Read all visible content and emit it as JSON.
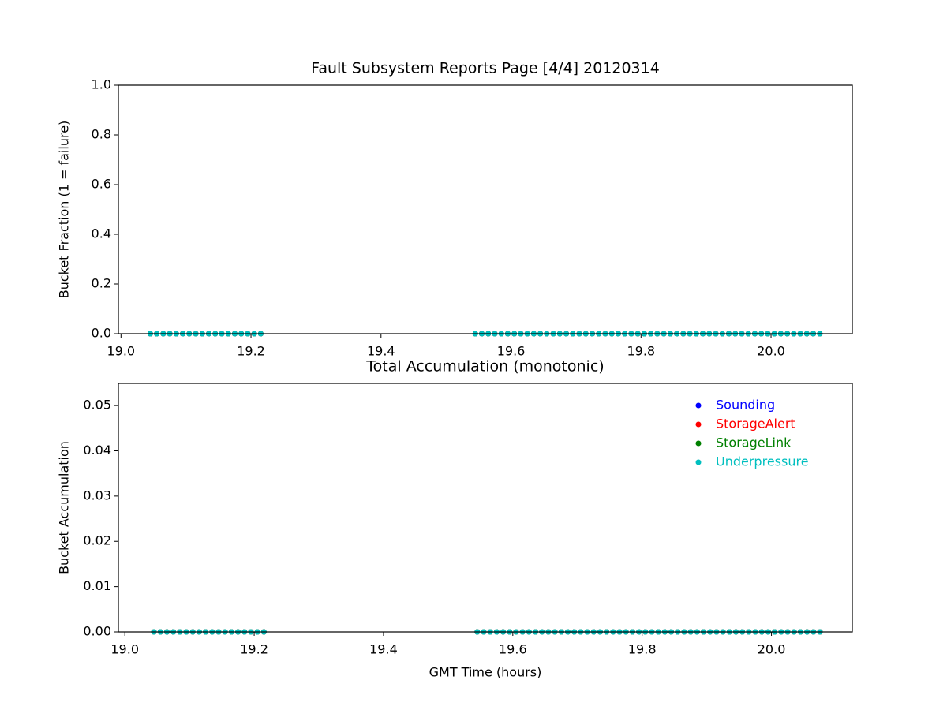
{
  "chart_data": [
    {
      "type": "scatter",
      "title": "Fault Subsystem Reports Page [4/4] 20120314",
      "y_label": "Bucket Fraction (1 = failure)",
      "x": [
        19.045,
        19.055,
        19.065,
        19.075,
        19.085,
        19.095,
        19.105,
        19.115,
        19.125,
        19.135,
        19.145,
        19.155,
        19.165,
        19.175,
        19.185,
        19.195,
        19.205,
        19.215,
        19.545,
        19.555,
        19.565,
        19.575,
        19.585,
        19.595,
        19.605,
        19.615,
        19.625,
        19.635,
        19.645,
        19.655,
        19.665,
        19.675,
        19.685,
        19.695,
        19.705,
        19.715,
        19.725,
        19.735,
        19.745,
        19.755,
        19.765,
        19.775,
        19.785,
        19.795,
        19.805,
        19.815,
        19.825,
        19.835,
        19.845,
        19.855,
        19.865,
        19.875,
        19.885,
        19.895,
        19.905,
        19.915,
        19.925,
        19.935,
        19.945,
        19.955,
        19.965,
        19.975,
        19.985,
        19.995,
        20.005,
        20.015,
        20.025,
        20.035,
        20.045,
        20.055,
        20.065,
        20.075
      ],
      "series": [
        {
          "color": "#0000ff",
          "values": [
            0,
            0,
            0,
            0,
            0,
            0,
            0,
            0,
            0,
            0,
            0,
            0,
            0,
            0,
            0,
            0,
            0,
            0,
            0,
            0,
            0,
            0,
            0,
            0,
            0,
            0,
            0,
            0,
            0,
            0,
            0,
            0,
            0,
            0,
            0,
            0,
            0,
            0,
            0,
            0,
            0,
            0,
            0,
            0,
            0,
            0,
            0,
            0,
            0,
            0,
            0,
            0,
            0,
            0,
            0,
            0,
            0,
            0,
            0,
            0,
            0,
            0,
            0,
            0,
            0,
            0,
            0,
            0,
            0,
            0,
            0,
            0
          ]
        },
        {
          "color": "#ff0000",
          "values": [
            0,
            0,
            0,
            0,
            0,
            0,
            0,
            0,
            0,
            0,
            0,
            0,
            0,
            0,
            0,
            0,
            0,
            0,
            0,
            0,
            0,
            0,
            0,
            0,
            0,
            0,
            0,
            0,
            0,
            0,
            0,
            0,
            0,
            0,
            0,
            0,
            0,
            0,
            0,
            0,
            0,
            0,
            0,
            0,
            0,
            0,
            0,
            0,
            0,
            0,
            0,
            0,
            0,
            0,
            0,
            0,
            0,
            0,
            0,
            0,
            0,
            0,
            0,
            0,
            0,
            0,
            0,
            0,
            0,
            0,
            0,
            0
          ]
        },
        {
          "color": "#008000",
          "values": [
            0,
            0,
            0,
            0,
            0,
            0,
            0,
            0,
            0,
            0,
            0,
            0,
            0,
            0,
            0,
            0,
            0,
            0,
            0,
            0,
            0,
            0,
            0,
            0,
            0,
            0,
            0,
            0,
            0,
            0,
            0,
            0,
            0,
            0,
            0,
            0,
            0,
            0,
            0,
            0,
            0,
            0,
            0,
            0,
            0,
            0,
            0,
            0,
            0,
            0,
            0,
            0,
            0,
            0,
            0,
            0,
            0,
            0,
            0,
            0,
            0,
            0,
            0,
            0,
            0,
            0,
            0,
            0,
            0,
            0,
            0,
            0
          ]
        },
        {
          "color": "#00bfbf",
          "values": [
            0,
            0,
            0,
            0,
            0,
            0,
            0,
            0,
            0,
            0,
            0,
            0,
            0,
            0,
            0,
            0,
            0,
            0,
            0,
            0,
            0,
            0,
            0,
            0,
            0,
            0,
            0,
            0,
            0,
            0,
            0,
            0,
            0,
            0,
            0,
            0,
            0,
            0,
            0,
            0,
            0,
            0,
            0,
            0,
            0,
            0,
            0,
            0,
            0,
            0,
            0,
            0,
            0,
            0,
            0,
            0,
            0,
            0,
            0,
            0,
            0,
            0,
            0,
            0,
            0,
            0,
            0,
            0,
            0,
            0,
            0,
            0
          ]
        }
      ],
      "xlim": [
        18.996,
        20.125
      ],
      "xticks": [
        {
          "value": 19,
          "label": "19.0"
        },
        {
          "value": 19.2,
          "label": "19.2"
        },
        {
          "value": 19.4,
          "label": "19.4"
        },
        {
          "value": 19.6,
          "label": "19.6"
        },
        {
          "value": 19.8,
          "label": "19.8"
        },
        {
          "value": 20,
          "label": "20.0"
        }
      ],
      "ylim": [
        0,
        1
      ],
      "yticks": [
        {
          "value": 0,
          "label": "0.0"
        },
        {
          "value": 0.2,
          "label": "0.2"
        },
        {
          "value": 0.4,
          "label": "0.4"
        },
        {
          "value": 0.6,
          "label": "0.6"
        },
        {
          "value": 0.8,
          "label": "0.8"
        },
        {
          "value": 1,
          "label": "1.0"
        }
      ]
    },
    {
      "type": "scatter",
      "title": "Total Accumulation (monotonic)",
      "x_label": "GMT Time (hours)",
      "y_label": "Bucket Accumulation",
      "legend": "upper right",
      "x": [
        19.045,
        19.055,
        19.065,
        19.075,
        19.085,
        19.095,
        19.105,
        19.115,
        19.125,
        19.135,
        19.145,
        19.155,
        19.165,
        19.175,
        19.185,
        19.195,
        19.205,
        19.215,
        19.545,
        19.555,
        19.565,
        19.575,
        19.585,
        19.595,
        19.605,
        19.615,
        19.625,
        19.635,
        19.645,
        19.655,
        19.665,
        19.675,
        19.685,
        19.695,
        19.705,
        19.715,
        19.725,
        19.735,
        19.745,
        19.755,
        19.765,
        19.775,
        19.785,
        19.795,
        19.805,
        19.815,
        19.825,
        19.835,
        19.845,
        19.855,
        19.865,
        19.875,
        19.885,
        19.895,
        19.905,
        19.915,
        19.925,
        19.935,
        19.945,
        19.955,
        19.965,
        19.975,
        19.985,
        19.995,
        20.005,
        20.015,
        20.025,
        20.035,
        20.045,
        20.055,
        20.065,
        20.075
      ],
      "series": [
        {
          "name": "Sounding",
          "color": "#0000ff",
          "values": [
            0,
            0,
            0,
            0,
            0,
            0,
            0,
            0,
            0,
            0,
            0,
            0,
            0,
            0,
            0,
            0,
            0,
            0,
            0,
            0,
            0,
            0,
            0,
            0,
            0,
            0,
            0,
            0,
            0,
            0,
            0,
            0,
            0,
            0,
            0,
            0,
            0,
            0,
            0,
            0,
            0,
            0,
            0,
            0,
            0,
            0,
            0,
            0,
            0,
            0,
            0,
            0,
            0,
            0,
            0,
            0,
            0,
            0,
            0,
            0,
            0,
            0,
            0,
            0,
            0,
            0,
            0,
            0,
            0,
            0,
            0,
            0
          ]
        },
        {
          "name": "StorageAlert",
          "color": "#ff0000",
          "values": [
            0,
            0,
            0,
            0,
            0,
            0,
            0,
            0,
            0,
            0,
            0,
            0,
            0,
            0,
            0,
            0,
            0,
            0,
            0,
            0,
            0,
            0,
            0,
            0,
            0,
            0,
            0,
            0,
            0,
            0,
            0,
            0,
            0,
            0,
            0,
            0,
            0,
            0,
            0,
            0,
            0,
            0,
            0,
            0,
            0,
            0,
            0,
            0,
            0,
            0,
            0,
            0,
            0,
            0,
            0,
            0,
            0,
            0,
            0,
            0,
            0,
            0,
            0,
            0,
            0,
            0,
            0,
            0,
            0,
            0,
            0,
            0
          ]
        },
        {
          "name": "StorageLink",
          "color": "#008000",
          "values": [
            0,
            0,
            0,
            0,
            0,
            0,
            0,
            0,
            0,
            0,
            0,
            0,
            0,
            0,
            0,
            0,
            0,
            0,
            0,
            0,
            0,
            0,
            0,
            0,
            0,
            0,
            0,
            0,
            0,
            0,
            0,
            0,
            0,
            0,
            0,
            0,
            0,
            0,
            0,
            0,
            0,
            0,
            0,
            0,
            0,
            0,
            0,
            0,
            0,
            0,
            0,
            0,
            0,
            0,
            0,
            0,
            0,
            0,
            0,
            0,
            0,
            0,
            0,
            0,
            0,
            0,
            0,
            0,
            0,
            0,
            0,
            0
          ]
        },
        {
          "name": "Underpressure",
          "color": "#00bfbf",
          "values": [
            0,
            0,
            0,
            0,
            0,
            0,
            0,
            0,
            0,
            0,
            0,
            0,
            0,
            0,
            0,
            0,
            0,
            0,
            0,
            0,
            0,
            0,
            0,
            0,
            0,
            0,
            0,
            0,
            0,
            0,
            0,
            0,
            0,
            0,
            0,
            0,
            0,
            0,
            0,
            0,
            0,
            0,
            0,
            0,
            0,
            0,
            0,
            0,
            0,
            0,
            0,
            0,
            0,
            0,
            0,
            0,
            0,
            0,
            0,
            0,
            0,
            0,
            0,
            0,
            0,
            0,
            0,
            0,
            0,
            0,
            0,
            0
          ]
        }
      ],
      "xlim": [
        18.99,
        20.125
      ],
      "xticks": [
        {
          "value": 19,
          "label": "19.0"
        },
        {
          "value": 19.2,
          "label": "19.2"
        },
        {
          "value": 19.4,
          "label": "19.4"
        },
        {
          "value": 19.6,
          "label": "19.6"
        },
        {
          "value": 19.8,
          "label": "19.8"
        },
        {
          "value": 20,
          "label": "20.0"
        }
      ],
      "ylim": [
        0,
        0.0549
      ],
      "yticks": [
        {
          "value": 0,
          "label": "0.00"
        },
        {
          "value": 0.01,
          "label": "0.01"
        },
        {
          "value": 0.02,
          "label": "0.02"
        },
        {
          "value": 0.03,
          "label": "0.03"
        },
        {
          "value": 0.04,
          "label": "0.04"
        },
        {
          "value": 0.05,
          "label": "0.05"
        }
      ]
    }
  ]
}
